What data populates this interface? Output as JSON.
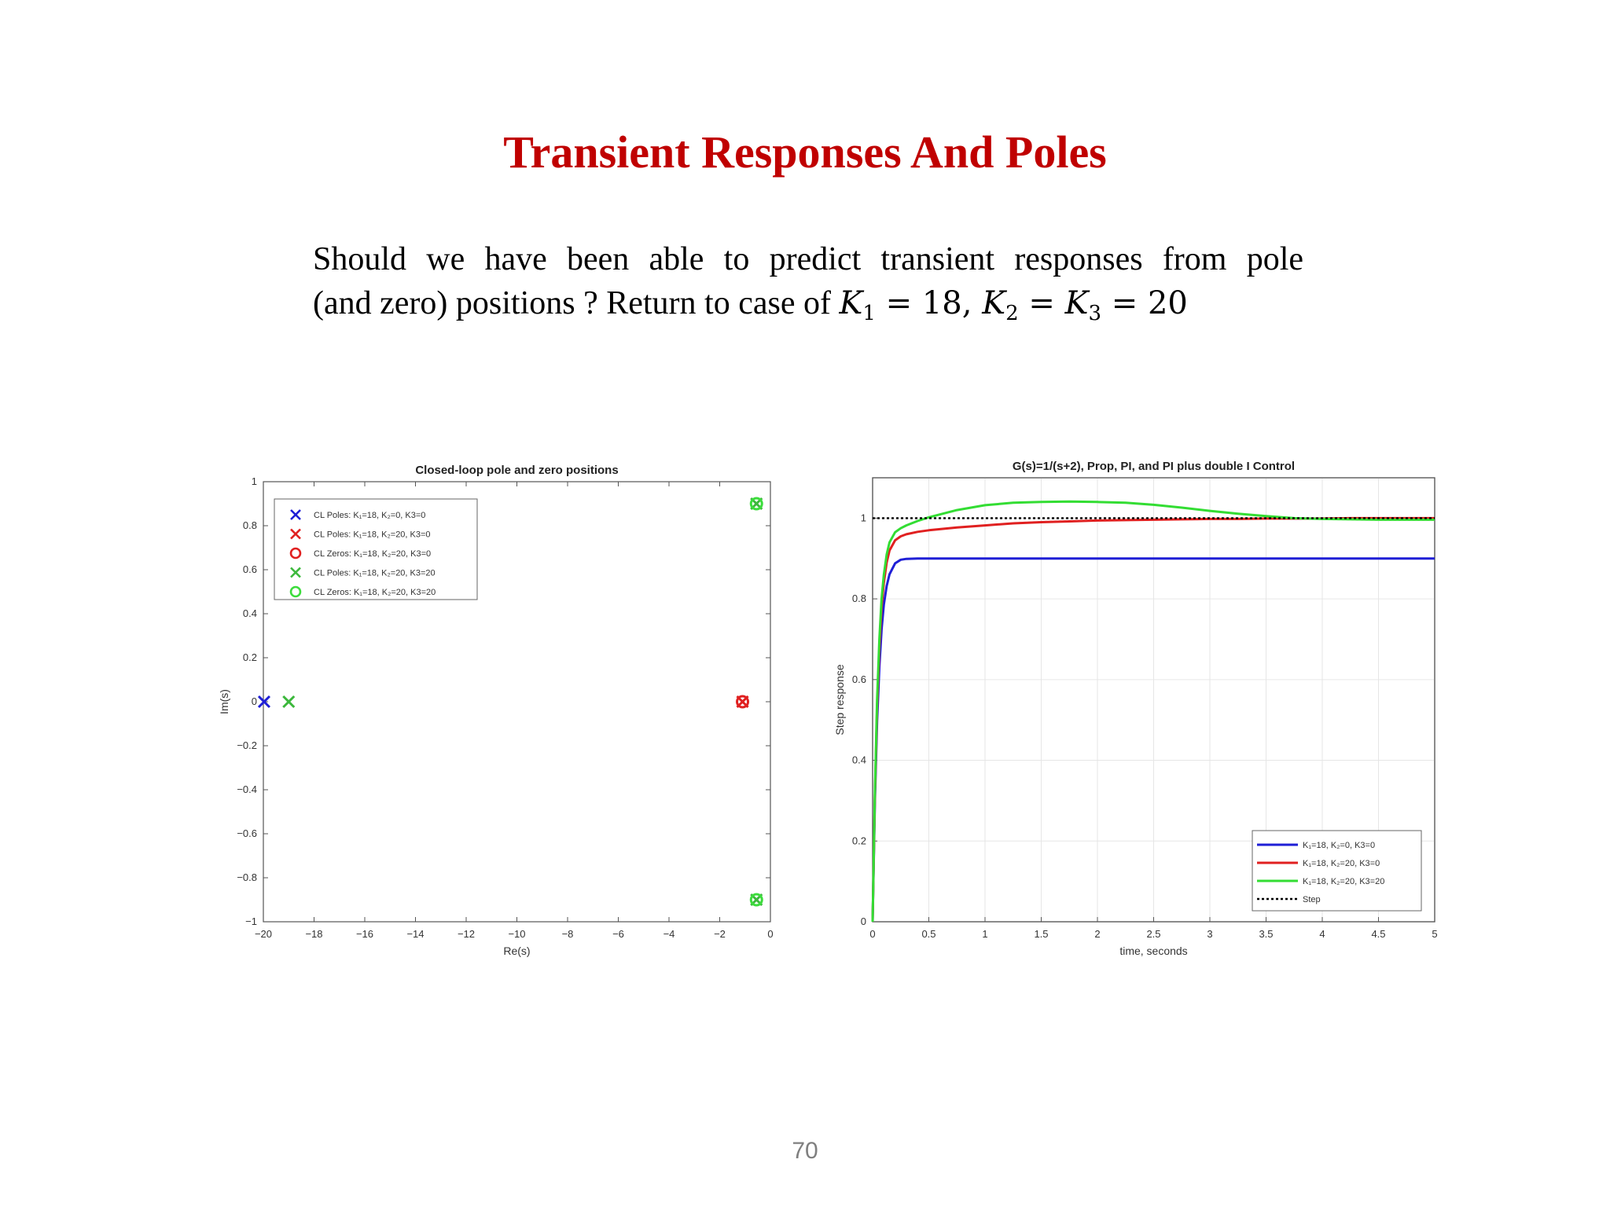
{
  "slide": {
    "title": "Transient Responses And Poles",
    "body_line1": "Should we have been able to predict transient responses from pole",
    "body_line2": "(and zero) positions ?  Return to case of ",
    "equation": {
      "k1": "18",
      "k2k3": "20"
    },
    "page_number": "70"
  },
  "chart_data": [
    {
      "type": "scatter",
      "title": "Closed-loop pole and zero positions",
      "xlabel": "Re(s)",
      "ylabel": "Im(s)",
      "xlim": [
        -20,
        0
      ],
      "ylim": [
        -1,
        1
      ],
      "xticks": [
        -20,
        -18,
        -16,
        -14,
        -12,
        -10,
        -8,
        -6,
        -4,
        -2,
        0
      ],
      "yticks": [
        -1,
        -0.8,
        -0.6,
        -0.4,
        -0.2,
        0,
        0.2,
        0.4,
        0.6,
        0.8,
        1
      ],
      "grid": false,
      "legend_position": "top-left",
      "series": [
        {
          "name": "CL Poles: K₁=18, K₂=0, K3=0",
          "marker": "x",
          "color": "#1f1fd6",
          "points": [
            [
              -19.97,
              0
            ]
          ]
        },
        {
          "name": "CL Poles: K₁=18, K₂=20, K3=0",
          "marker": "x",
          "color": "#e02020",
          "points": [
            [
              -1.1,
              0
            ]
          ]
        },
        {
          "name": "CL Zeros: K₁=18, K₂=20, K3=0",
          "marker": "o",
          "color": "#e02020",
          "points": [
            [
              -1.1,
              0
            ]
          ]
        },
        {
          "name": "CL Poles: K₁=18, K₂=20, K3=20",
          "marker": "x",
          "color": "#3cb83c",
          "points": [
            [
              -19.0,
              0
            ],
            [
              -0.55,
              0.9
            ],
            [
              -0.55,
              -0.9
            ]
          ]
        },
        {
          "name": "CL Zeros: K₁=18, K₂=20, K3=20",
          "marker": "o",
          "color": "#3cdc3c",
          "points": [
            [
              -0.55,
              0.9
            ],
            [
              -0.55,
              -0.9
            ]
          ]
        }
      ]
    },
    {
      "type": "line",
      "title": "G(s)=1/(s+2), Prop, PI, and PI plus double I Control",
      "xlabel": "time, seconds",
      "ylabel": "Step response",
      "xlim": [
        0,
        5
      ],
      "ylim": [
        0,
        1.1
      ],
      "xticks": [
        0,
        0.5,
        1,
        1.5,
        2,
        2.5,
        3,
        3.5,
        4,
        4.5,
        5
      ],
      "yticks": [
        0,
        0.2,
        0.4,
        0.6,
        0.8,
        1
      ],
      "grid": true,
      "legend_position": "bottom-right",
      "x": [
        0,
        0.02,
        0.04,
        0.06,
        0.08,
        0.1,
        0.125,
        0.15,
        0.2,
        0.25,
        0.3,
        0.4,
        0.5,
        0.75,
        1,
        1.25,
        1.5,
        1.75,
        2,
        2.25,
        2.5,
        2.75,
        3,
        3.25,
        3.5,
        3.75,
        4,
        4.25,
        4.5,
        4.75,
        5
      ],
      "series": [
        {
          "name": "K₁=18, K₂=0, K3=0",
          "color": "#1f1fd6",
          "style": "solid",
          "values": [
            0,
            0.297,
            0.497,
            0.632,
            0.724,
            0.786,
            0.832,
            0.861,
            0.888,
            0.897,
            0.899,
            0.9,
            0.9,
            0.9,
            0.9,
            0.9,
            0.9,
            0.9,
            0.9,
            0.9,
            0.9,
            0.9,
            0.9,
            0.9,
            0.9,
            0.9,
            0.9,
            0.9,
            0.9,
            0.9,
            0.9
          ]
        },
        {
          "name": "K₁=18, K₂=20, K3=0",
          "color": "#e02020",
          "style": "solid",
          "values": [
            0,
            0.31,
            0.53,
            0.68,
            0.78,
            0.84,
            0.89,
            0.92,
            0.945,
            0.955,
            0.96,
            0.966,
            0.97,
            0.977,
            0.982,
            0.987,
            0.99,
            0.992,
            0.994,
            0.995,
            0.996,
            0.997,
            0.998,
            0.998,
            0.999,
            0.999,
            0.999,
            1.0,
            1.0,
            1.0,
            1.0
          ]
        },
        {
          "name": "K₁=18, K₂=20, K3=20",
          "color": "#33dd33",
          "style": "solid",
          "values": [
            0,
            0.32,
            0.55,
            0.7,
            0.8,
            0.86,
            0.91,
            0.94,
            0.965,
            0.975,
            0.982,
            0.993,
            1.002,
            1.02,
            1.032,
            1.038,
            1.04,
            1.041,
            1.04,
            1.038,
            1.033,
            1.026,
            1.018,
            1.011,
            1.005,
            1.0,
            0.998,
            0.997,
            0.996,
            0.996,
            0.996
          ]
        },
        {
          "name": "Step",
          "color": "#000000",
          "style": "dotted",
          "values": [
            1,
            1,
            1,
            1,
            1,
            1,
            1,
            1,
            1,
            1,
            1,
            1,
            1,
            1,
            1,
            1,
            1,
            1,
            1,
            1,
            1,
            1,
            1,
            1,
            1,
            1,
            1,
            1,
            1,
            1,
            1
          ]
        }
      ]
    }
  ]
}
